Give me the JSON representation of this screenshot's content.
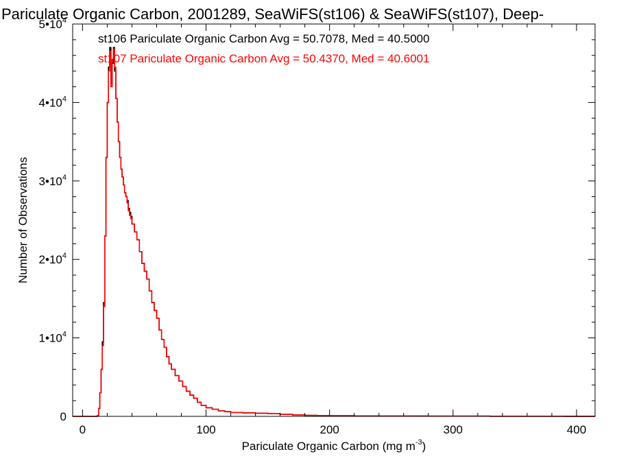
{
  "chart_data": {
    "type": "line",
    "title": "Pariculate Organic Carbon, 2001289, SeaWiFS(st106) & SeaWiFS(st107), Deep-",
    "xlabel": "Pariculate Organic Carbon (mg m",
    "xlabel_sup": "-3",
    "xlabel_close": ")",
    "ylabel": "Number of Observations",
    "xlim": [
      -8,
      415
    ],
    "ylim": [
      0,
      50000
    ],
    "x_ticks": [
      {
        "value": 0,
        "label": "0"
      },
      {
        "value": 100,
        "label": "100"
      },
      {
        "value": 200,
        "label": "200"
      },
      {
        "value": 300,
        "label": "300"
      },
      {
        "value": 400,
        "label": "400"
      }
    ],
    "y_ticks": [
      {
        "value": 0,
        "label": "0",
        "sup": ""
      },
      {
        "value": 10000,
        "label": "1•10",
        "sup": "4"
      },
      {
        "value": 20000,
        "label": "2•10",
        "sup": "4"
      },
      {
        "value": 30000,
        "label": "3•10",
        "sup": "4"
      },
      {
        "value": 40000,
        "label": "4•10",
        "sup": "4"
      },
      {
        "value": 50000,
        "label": "5•10",
        "sup": "4"
      }
    ],
    "grid": false,
    "annotations": [
      {
        "text": "st106 Pariculate Organic Carbon Avg = 50.7078, Med = 40.5000",
        "color": "#000000"
      },
      {
        "text": "st107 Pariculate Organic Carbon Avg = 50.4370, Med = 40.6001",
        "color": "#ff0000"
      }
    ],
    "x": [
      -8,
      12,
      13,
      14,
      15,
      16,
      17,
      18,
      19,
      20,
      21,
      22,
      23,
      24,
      25,
      26,
      27,
      28,
      29,
      30,
      31,
      32,
      33,
      34,
      35,
      36,
      37,
      38,
      39,
      40,
      42,
      44,
      46,
      48,
      50,
      52,
      54,
      56,
      58,
      60,
      62,
      64,
      66,
      68,
      70,
      72,
      75,
      78,
      81,
      84,
      87,
      90,
      93,
      96,
      100,
      105,
      110,
      115,
      120,
      130,
      140,
      150,
      160,
      170,
      180,
      190,
      200,
      220,
      240,
      260,
      280,
      300,
      330,
      360,
      390,
      415
    ],
    "series": [
      {
        "name": "st106",
        "color": "#000000",
        "values": [
          0,
          100,
          1000,
          3000,
          6000,
          9500,
          14500,
          23000,
          33000,
          40000,
          44500,
          47000,
          42500,
          45000,
          47000,
          44000,
          40500,
          37500,
          35000,
          33000,
          31500,
          30500,
          29500,
          28500,
          28000,
          27500,
          26500,
          26000,
          25500,
          24500,
          23500,
          22500,
          21000,
          19500,
          18500,
          17500,
          16000,
          14500,
          13500,
          12500,
          11000,
          9800,
          8800,
          7600,
          6700,
          6000,
          5200,
          4500,
          3800,
          3200,
          2700,
          2300,
          1800,
          1400,
          1100,
          900,
          700,
          600,
          500,
          450,
          400,
          350,
          250,
          180,
          130,
          100,
          80,
          60,
          45,
          35,
          30,
          25,
          20,
          15,
          10,
          8
        ]
      },
      {
        "name": "st107",
        "color": "#ff0000",
        "values": [
          0,
          100,
          1000,
          3000,
          6000,
          9000,
          14000,
          23000,
          33000,
          40000,
          44000,
          46500,
          42000,
          45500,
          46800,
          44500,
          40500,
          37500,
          35000,
          33000,
          31500,
          30500,
          29500,
          28500,
          28000,
          27200,
          26200,
          25600,
          25200,
          24500,
          23500,
          22500,
          21000,
          19500,
          18500,
          17500,
          16000,
          14500,
          13500,
          12500,
          11000,
          9800,
          8800,
          7600,
          6700,
          6000,
          5200,
          4500,
          3800,
          3200,
          2700,
          2300,
          1800,
          1400,
          1100,
          900,
          700,
          600,
          500,
          450,
          400,
          350,
          250,
          180,
          130,
          100,
          80,
          60,
          45,
          35,
          30,
          25,
          20,
          15,
          10,
          8
        ]
      }
    ]
  }
}
